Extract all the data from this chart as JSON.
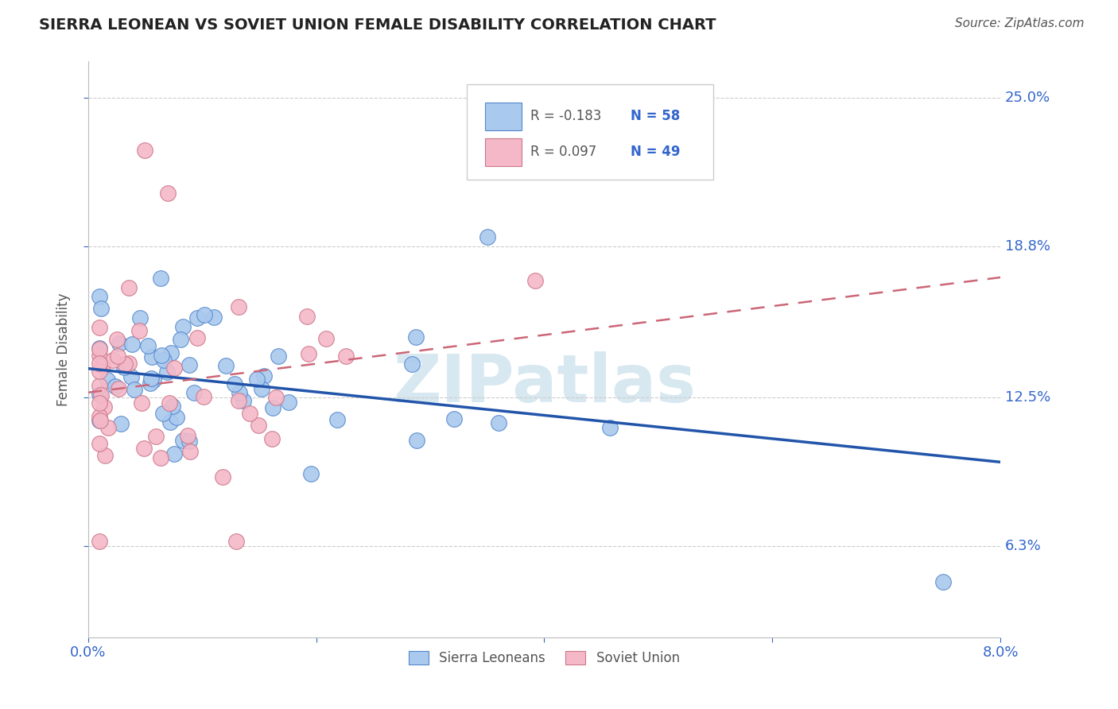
{
  "title": "SIERRA LEONEAN VS SOVIET UNION FEMALE DISABILITY CORRELATION CHART",
  "source": "Source: ZipAtlas.com",
  "ylabel_text": "Female Disability",
  "x_min": 0.0,
  "x_max": 0.08,
  "y_min": 0.025,
  "y_max": 0.265,
  "y_ticks": [
    0.063,
    0.125,
    0.188,
    0.25
  ],
  "y_tick_labels": [
    "6.3%",
    "12.5%",
    "18.8%",
    "25.0%"
  ],
  "blue_R": -0.183,
  "blue_N": 58,
  "pink_R": 0.097,
  "pink_N": 49,
  "blue_color": "#aac9ee",
  "pink_color": "#f4b8c8",
  "blue_edge_color": "#5588cc",
  "pink_edge_color": "#cc7788",
  "blue_line_color": "#2255aa",
  "pink_line_color": "#cc6677",
  "legend_label_blue": "Sierra Leoneans",
  "legend_label_pink": "Soviet Union",
  "blue_trend_x": [
    0.0,
    0.08
  ],
  "blue_trend_y": [
    0.137,
    0.098
  ],
  "pink_trend_x": [
    0.0,
    0.08
  ],
  "pink_trend_y": [
    0.127,
    0.175
  ],
  "watermark": "ZIPatlas",
  "background_color": "#ffffff",
  "grid_color": "#cccccc",
  "title_color": "#222222",
  "source_color": "#555555",
  "axis_label_color": "#555555",
  "tick_label_color": "#3366cc",
  "r_text_color": "#555555",
  "n_text_color": "#3366cc"
}
